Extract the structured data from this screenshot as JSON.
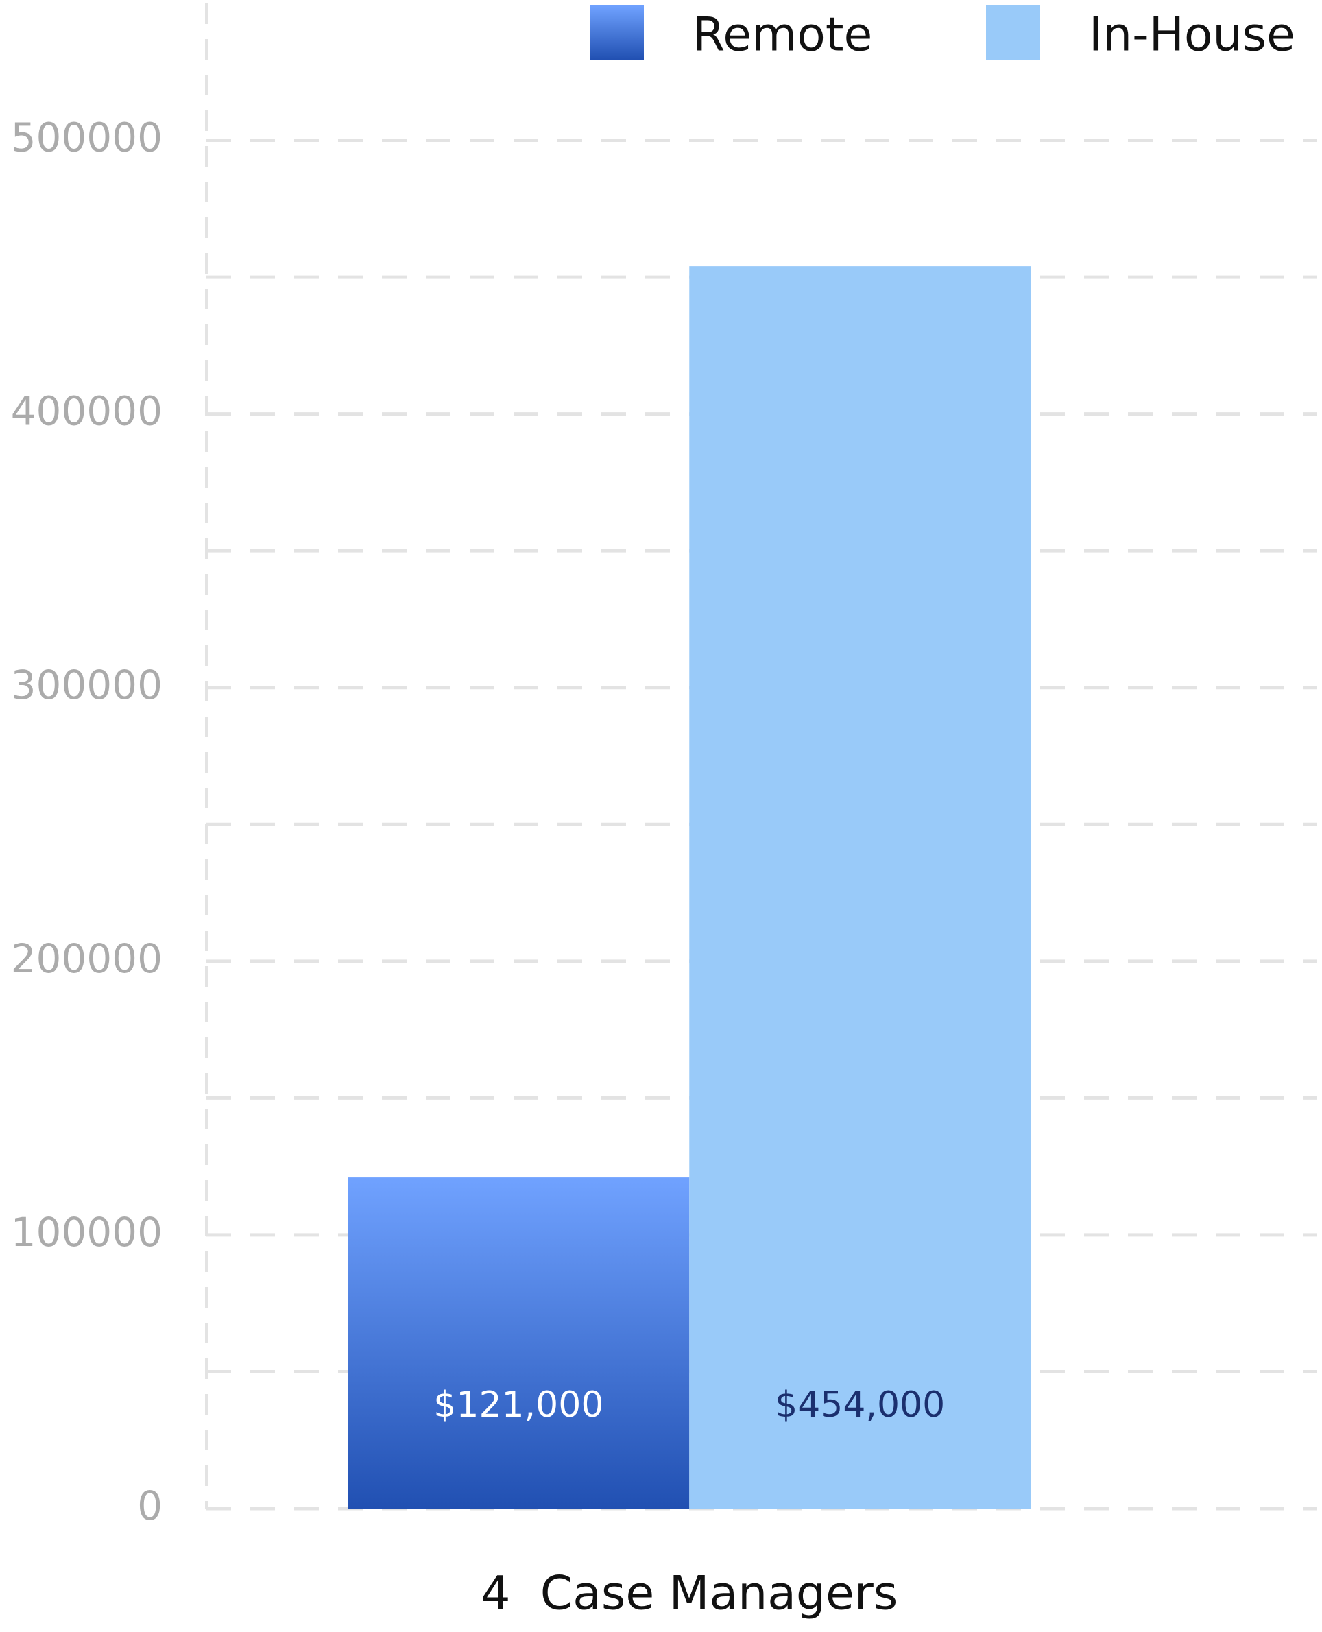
{
  "chart_data": {
    "type": "bar",
    "categories": [
      "4  Case Managers"
    ],
    "series": [
      {
        "name": "Remote",
        "color": "#4a7de0",
        "gradient": [
          "#70a2ff",
          "#2150b2"
        ],
        "values": [
          121000
        ],
        "value_labels": [
          "$121,000"
        ],
        "label_color": "#ffffff"
      },
      {
        "name": "In-House",
        "color": "#99caf9",
        "values": [
          454000
        ],
        "value_labels": [
          "$454,000"
        ],
        "label_color": "#1b2f6e"
      }
    ],
    "ylim": [
      0,
      550000
    ],
    "yticks": [
      0,
      100000,
      200000,
      300000,
      400000,
      500000
    ],
    "minor_yticks": [
      50000,
      150000,
      250000,
      350000,
      450000
    ],
    "grid": true,
    "legend": "top-right"
  }
}
